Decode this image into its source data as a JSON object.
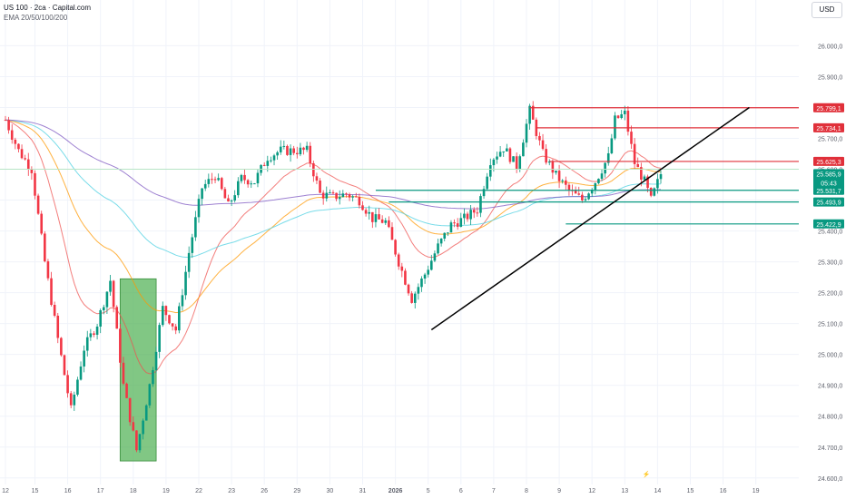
{
  "header": {
    "symbol_line": "US 100 · 2сa · Capital.com",
    "indicator_line": "EMA 20/50/100/200",
    "currency": "USD"
  },
  "events": [
    {
      "icon": "lightning-icon",
      "color": "#e91e63"
    },
    {
      "icon": "us-flag-icon",
      "color": "#d32f2f"
    },
    {
      "icon": "us-flag-icon",
      "color": "#d32f2f"
    }
  ],
  "chart_data": {
    "type": "candlestick",
    "title": "US 100",
    "ylim": [
      24580,
      26070
    ],
    "y_ticks": [
      24600,
      24700,
      24800,
      24900,
      25000,
      25100,
      25200,
      25300,
      25400,
      25500,
      25600,
      25700,
      25800,
      25900,
      26000
    ],
    "y_tick_labels": [
      "24.600,0",
      "24.700,0",
      "24.800,0",
      "24.900,0",
      "25.000,0",
      "25.100,0",
      "25.200,0",
      "25.300,0",
      "25.400,0",
      "25.500,0",
      "25.600,0",
      "25.700,0",
      "25.800,0",
      "25.900,0",
      "26.000,0"
    ],
    "x_ticks": [
      {
        "label": "12",
        "i": 0
      },
      {
        "label": "15",
        "i": 9
      },
      {
        "label": "16",
        "i": 19
      },
      {
        "label": "17",
        "i": 29
      },
      {
        "label": "18",
        "i": 39
      },
      {
        "label": "19",
        "i": 49
      },
      {
        "label": "22",
        "i": 59
      },
      {
        "label": "23",
        "i": 69
      },
      {
        "label": "26",
        "i": 79
      },
      {
        "label": "29",
        "i": 89
      },
      {
        "label": "30",
        "i": 99
      },
      {
        "label": "31",
        "i": 109
      },
      {
        "label": "2026",
        "i": 119
      },
      {
        "label": "5",
        "i": 129
      },
      {
        "label": "6",
        "i": 139
      },
      {
        "label": "7",
        "i": 149
      },
      {
        "label": "8",
        "i": 159
      },
      {
        "label": "9",
        "i": 169
      },
      {
        "label": "12",
        "i": 179
      },
      {
        "label": "13",
        "i": 189
      },
      {
        "label": "14",
        "i": 199
      },
      {
        "label": "15",
        "i": 209
      },
      {
        "label": "16",
        "i": 219
      },
      {
        "label": "19",
        "i": 229
      }
    ],
    "anchors": [
      [
        0,
        25760
      ],
      [
        4,
        25660
      ],
      [
        8,
        25600
      ],
      [
        12,
        25300
      ],
      [
        16,
        25050
      ],
      [
        20,
        24820
      ],
      [
        24,
        25020
      ],
      [
        28,
        25100
      ],
      [
        32,
        25240
      ],
      [
        36,
        24900
      ],
      [
        40,
        24690
      ],
      [
        44,
        24900
      ],
      [
        48,
        25150
      ],
      [
        52,
        25080
      ],
      [
        56,
        25330
      ],
      [
        60,
        25540
      ],
      [
        64,
        25580
      ],
      [
        68,
        25480
      ],
      [
        72,
        25570
      ],
      [
        76,
        25560
      ],
      [
        80,
        25640
      ],
      [
        84,
        25660
      ],
      [
        88,
        25660
      ],
      [
        92,
        25660
      ],
      [
        96,
        25520
      ],
      [
        100,
        25510
      ],
      [
        104,
        25520
      ],
      [
        108,
        25500
      ],
      [
        112,
        25440
      ],
      [
        116,
        25430
      ],
      [
        120,
        25300
      ],
      [
        124,
        25180
      ],
      [
        128,
        25260
      ],
      [
        132,
        25350
      ],
      [
        136,
        25420
      ],
      [
        140,
        25440
      ],
      [
        144,
        25470
      ],
      [
        148,
        25630
      ],
      [
        152,
        25670
      ],
      [
        156,
        25610
      ],
      [
        160,
        25790
      ],
      [
        164,
        25650
      ],
      [
        168,
        25580
      ],
      [
        172,
        25530
      ],
      [
        176,
        25500
      ],
      [
        180,
        25560
      ],
      [
        184,
        25640
      ],
      [
        186,
        25760
      ],
      [
        189,
        25780
      ],
      [
        192,
        25620
      ],
      [
        195,
        25560
      ],
      [
        197,
        25500
      ],
      [
        200,
        25585
      ]
    ],
    "price_levels": [
      {
        "value": "25.799,1",
        "price": 25799.1,
        "color": "#e0303a",
        "start_i": 160
      },
      {
        "value": "25.734,1",
        "price": 25734.1,
        "color": "#e0303a",
        "start_i": 162
      },
      {
        "value": "25.625,3",
        "price": 25625.3,
        "color": "#e0303a",
        "start_i": 166
      },
      {
        "value": "25.531,7",
        "price": 25531.7,
        "color": "#089981",
        "start_i": 113
      },
      {
        "value": "25.493,9",
        "price": 25493.9,
        "color": "#089981",
        "start_i": 117
      },
      {
        "value": "25.422,9",
        "price": 25422.9,
        "color": "#089981",
        "start_i": 171
      }
    ],
    "current_price": {
      "value": "25.585,9",
      "countdown": "05:43",
      "price": 25585.9,
      "color": "#089981"
    },
    "trendline": {
      "from": {
        "i": 130,
        "price": 25080
      },
      "to": {
        "i": 227,
        "price": 25800
      }
    },
    "zone": {
      "from_i": 35,
      "to_i": 46,
      "top": 25245,
      "bottom": 24655,
      "color": "#4caf50"
    },
    "horizontal_ref": {
      "price": 25600
    }
  }
}
